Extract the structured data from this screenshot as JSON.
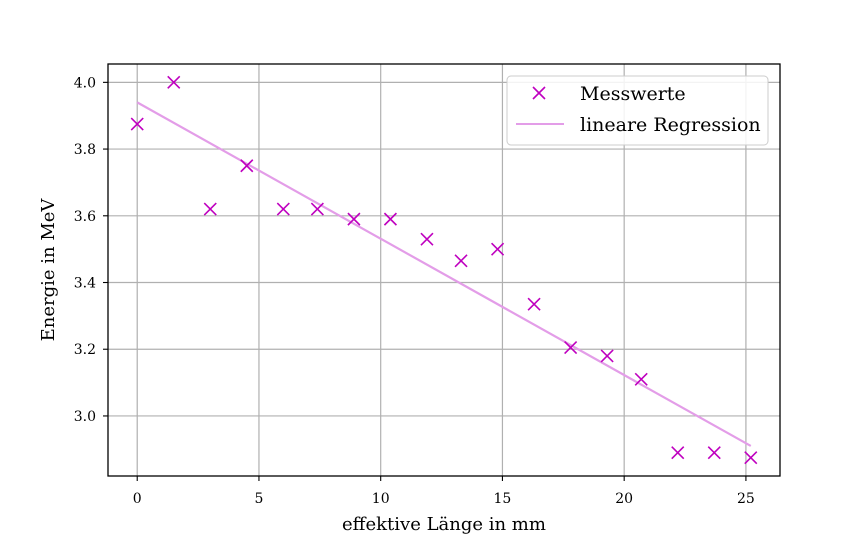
{
  "chart_data": {
    "type": "scatter",
    "xlabel": "effektive Länge in mm",
    "ylabel": "Energie in MeV",
    "xlim": [
      -1.2,
      26.4
    ],
    "ylim": [
      2.82,
      4.055
    ],
    "xticks": [
      0,
      5,
      10,
      15,
      20,
      25
    ],
    "yticks": [
      3.0,
      3.2,
      3.4,
      3.6,
      3.8,
      4.0
    ],
    "xtick_labels": [
      "0",
      "5",
      "10",
      "15",
      "20",
      "25"
    ],
    "ytick_labels": [
      "3.0",
      "3.2",
      "3.4",
      "3.6",
      "3.8",
      "4.0"
    ],
    "grid": true,
    "legend_position": "top-right",
    "series": [
      {
        "name": "Messwerte",
        "kind": "scatter",
        "marker": "x",
        "color": "#bf00bf",
        "x": [
          0,
          1.5,
          3.0,
          4.5,
          6.0,
          7.4,
          8.9,
          10.4,
          11.9,
          13.3,
          14.8,
          16.3,
          17.8,
          19.3,
          20.7,
          22.2,
          23.7,
          25.2
        ],
        "y": [
          3.875,
          4.0,
          3.62,
          3.75,
          3.62,
          3.62,
          3.59,
          3.59,
          3.53,
          3.465,
          3.5,
          3.335,
          3.205,
          3.18,
          3.11,
          2.89,
          2.89,
          2.875
        ]
      },
      {
        "name": "lineare Regression",
        "kind": "line",
        "color": "#e39de8",
        "x": [
          0,
          25.2
        ],
        "y": [
          3.94,
          2.91
        ]
      }
    ]
  }
}
